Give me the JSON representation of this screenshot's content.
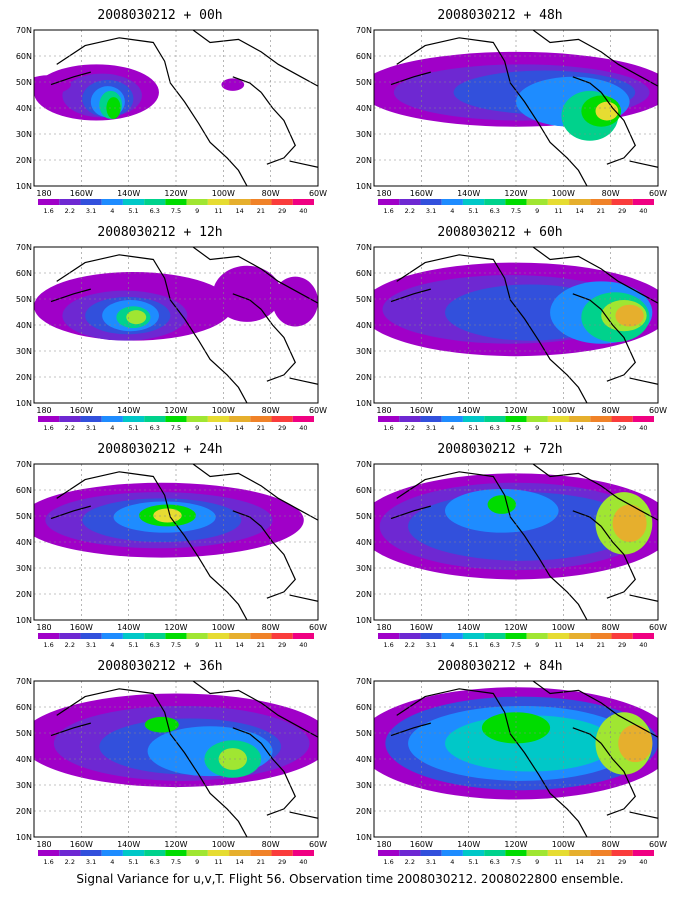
{
  "colors": {
    "palette": [
      "#a000c8",
      "#6e28d2",
      "#3250dc",
      "#1e8cff",
      "#00c8c8",
      "#00d28c",
      "#00dc00",
      "#a0e632",
      "#e6dc32",
      "#e6af2d",
      "#f08228",
      "#fa3c3c",
      "#f00082"
    ],
    "background": "#ffffff",
    "coast": "#000000"
  },
  "map_axes": {
    "lat_labels": [
      "70N",
      "60N",
      "50N",
      "40N",
      "30N",
      "20N",
      "10N"
    ],
    "lon_labels": [
      "180",
      "160W",
      "140W",
      "120W",
      "100W",
      "80W",
      "60W"
    ]
  },
  "colorbar": {
    "levels": [
      "1.6",
      "2.2",
      "3.1",
      "4",
      "5.1",
      "6.3",
      "7.5",
      "9",
      "11",
      "14",
      "21",
      "29",
      "40"
    ]
  },
  "panels": [
    {
      "title": "2008030212 + 00h"
    },
    {
      "title": "2008030212 + 48h"
    },
    {
      "title": "2008030212 + 12h"
    },
    {
      "title": "2008030212 + 60h"
    },
    {
      "title": "2008030212 + 24h"
    },
    {
      "title": "2008030212 + 72h"
    },
    {
      "title": "2008030212 + 36h"
    },
    {
      "title": "2008030212 + 84h"
    }
  ],
  "caption": "Signal Variance for u,v,T. Flight 56. Observation time 2008030212. 2008022800 ensemble."
}
